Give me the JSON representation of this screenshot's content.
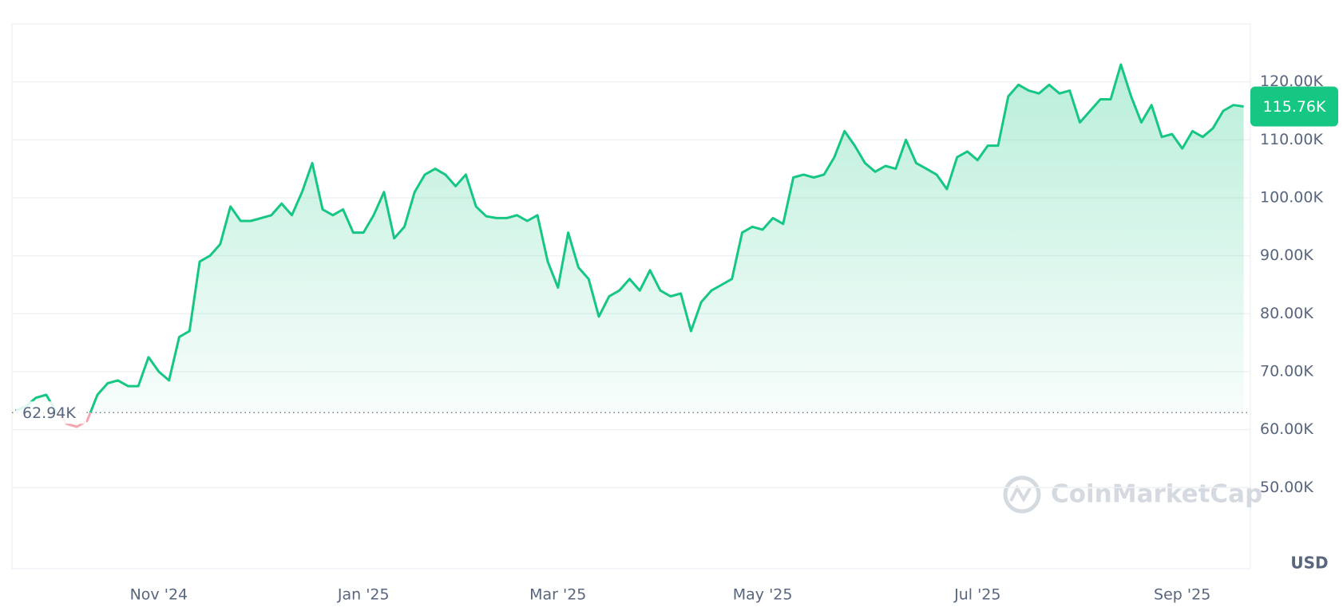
{
  "chart_data": {
    "type": "line",
    "color": "#16c784",
    "below_color": "#f4a6b0",
    "values": [
      63.3,
      64,
      65.5,
      66,
      63,
      61,
      60.5,
      61.5,
      66,
      68,
      68.5,
      67.5,
      67.5,
      72.5,
      70,
      68.5,
      76,
      77,
      89,
      90,
      92,
      98.5,
      96,
      96,
      96.5,
      97,
      99,
      97,
      101,
      106,
      98,
      97,
      98,
      94,
      94,
      97,
      101,
      93,
      95,
      101,
      104,
      105,
      104,
      102,
      104,
      98.5,
      96.8,
      96.5,
      96.5,
      97,
      96,
      97,
      89,
      84.5,
      94,
      88,
      86,
      79.5,
      83,
      84,
      86,
      84,
      87.5,
      84,
      83,
      83.5,
      77,
      82,
      84,
      85,
      86,
      94,
      95,
      94.5,
      96.5,
      95.5,
      103.5,
      104,
      103.5,
      104,
      107,
      111.5,
      109,
      106,
      104.5,
      105.5,
      105,
      110,
      106,
      105,
      104,
      101.5,
      107,
      108,
      106.5,
      109,
      109,
      117.5,
      119.5,
      118.5,
      118,
      119.5,
      118,
      118.5,
      113,
      115,
      117,
      117,
      123,
      117.5,
      113,
      116,
      110.5,
      111,
      108.5,
      111.5,
      110.5,
      112,
      115,
      116,
      115.76
    ],
    "categories": [
      null,
      null,
      null,
      null,
      null,
      null,
      null,
      null,
      null,
      null,
      null,
      null,
      null,
      null,
      "Nov '24",
      null,
      null,
      null,
      null,
      null,
      null,
      null,
      null,
      null,
      null,
      null,
      null,
      null,
      null,
      null,
      null,
      null,
      null,
      null,
      "Jan '25",
      null,
      null,
      null,
      null,
      null,
      null,
      null,
      null,
      null,
      null,
      null,
      null,
      null,
      null,
      null,
      null,
      null,
      null,
      "Mar '25",
      null,
      null,
      null,
      null,
      null,
      null,
      null,
      null,
      null,
      null,
      null,
      null,
      null,
      null,
      null,
      null,
      null,
      null,
      null,
      "May '25",
      null,
      null,
      null,
      null,
      null,
      null,
      null,
      null,
      null,
      null,
      null,
      null,
      null,
      null,
      null,
      null,
      null,
      null,
      null,
      null,
      "Jul '25",
      null,
      null,
      null,
      null,
      null,
      null,
      null,
      null,
      null,
      null,
      null,
      null,
      null,
      null,
      null,
      null,
      null,
      null,
      null,
      "Sep '25",
      null,
      null,
      null,
      null,
      null,
      null
    ],
    "ylim": [
      36,
      130
    ],
    "yticks": [
      {
        "value": 50,
        "label": "50.00K"
      },
      {
        "value": 60,
        "label": "60.00K"
      },
      {
        "value": 70,
        "label": "70.00K"
      },
      {
        "value": 80,
        "label": "80.00K"
      },
      {
        "value": 90,
        "label": "90.00K"
      },
      {
        "value": 100,
        "label": "100.00K"
      },
      {
        "value": 110,
        "label": "110.00K"
      },
      {
        "value": 120,
        "label": "120.00K"
      }
    ],
    "grid": true,
    "reference_line": {
      "value": 62.94,
      "label": "62.94K"
    },
    "current_price": {
      "value": 115.76,
      "label": "115.76K"
    },
    "unit": "USD",
    "watermark": "CoinMarketCap"
  }
}
